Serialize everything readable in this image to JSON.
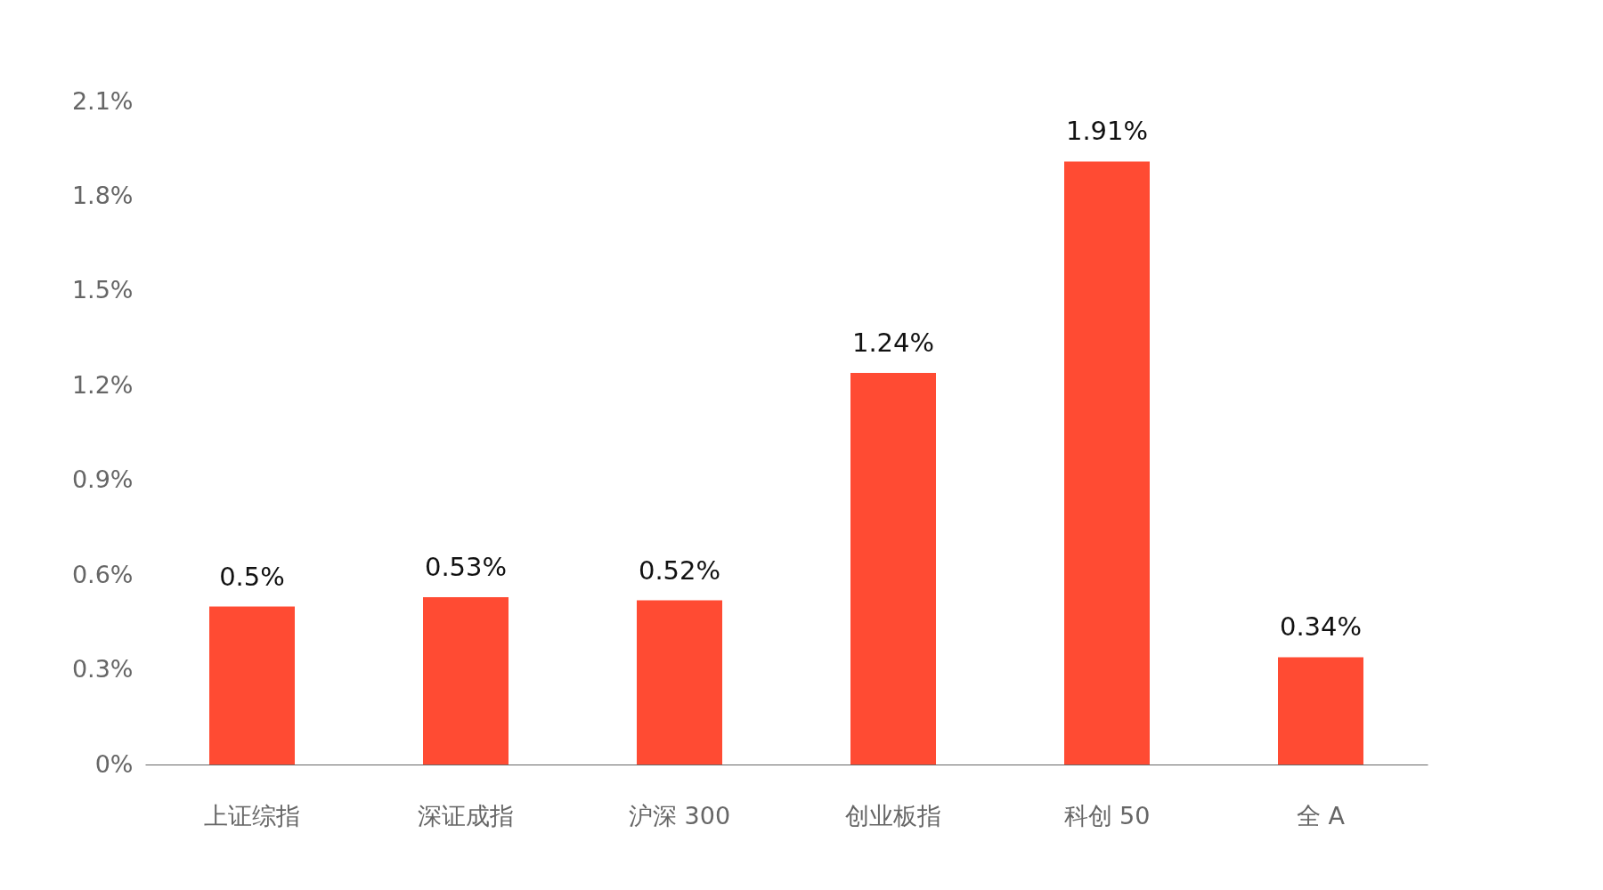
{
  "chart_data": {
    "type": "bar",
    "categories": [
      "上证综指",
      "深证成指",
      "沪深 300",
      "创业板指",
      "科创 50",
      "全 A"
    ],
    "values": [
      0.5,
      0.53,
      0.52,
      1.24,
      1.91,
      0.34
    ],
    "value_labels": [
      "0.5%",
      "0.53%",
      "0.52%",
      "1.24%",
      "1.91%",
      "0.34%"
    ],
    "color": "#ff4b33",
    "ylim": [
      0,
      2.1
    ],
    "yticks": [
      {
        "value": 0,
        "label": "0%"
      },
      {
        "value": 0.3,
        "label": "0.3%"
      },
      {
        "value": 0.6,
        "label": "0.6%"
      },
      {
        "value": 0.9,
        "label": "0.9%"
      },
      {
        "value": 1.2,
        "label": "1.2%"
      },
      {
        "value": 1.5,
        "label": "1.5%"
      },
      {
        "value": 1.8,
        "label": "1.8%"
      },
      {
        "value": 2.1,
        "label": "2.1%"
      }
    ],
    "grid": false
  }
}
